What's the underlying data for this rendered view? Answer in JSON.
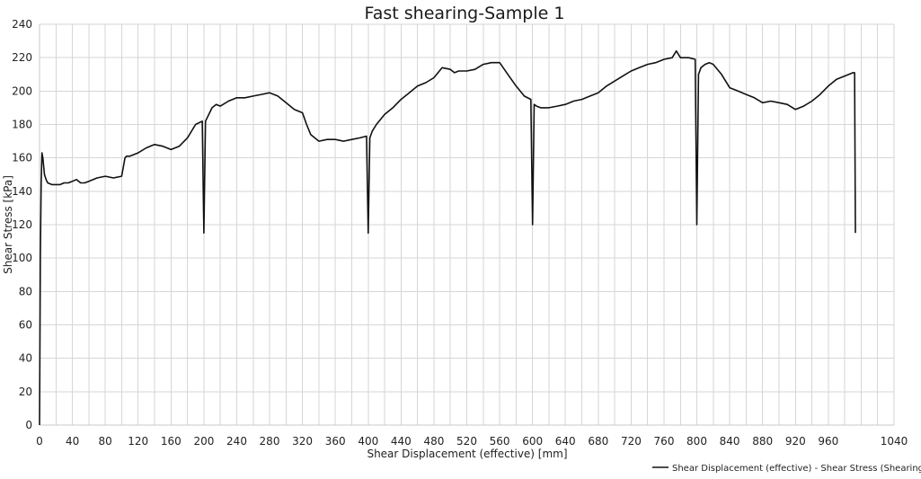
{
  "chart_data": {
    "type": "line",
    "title": "Fast shearing-Sample 1",
    "xlabel": "Shear Displacement (effective) [mm]",
    "ylabel": "Shear Stress [kPa]",
    "xlim": [
      0,
      1040
    ],
    "ylim": [
      0,
      240
    ],
    "xticks": [
      0,
      40,
      80,
      120,
      160,
      200,
      240,
      280,
      320,
      360,
      400,
      440,
      480,
      520,
      560,
      600,
      640,
      680,
      720,
      760,
      800,
      840,
      880,
      920,
      960,
      1040
    ],
    "yticks": [
      0,
      20,
      40,
      60,
      80,
      100,
      120,
      140,
      160,
      180,
      200,
      220,
      240
    ],
    "grid": true,
    "legend": "bottom-right",
    "series": [
      {
        "name": "Shear Displacement (effective) - Shear Stress (Shearing)",
        "color": "#111111",
        "x": [
          0,
          1,
          2,
          3,
          4,
          6,
          8,
          10,
          15,
          20,
          25,
          30,
          35,
          40,
          45,
          50,
          55,
          60,
          70,
          80,
          90,
          100,
          104,
          106,
          110,
          120,
          130,
          140,
          150,
          160,
          170,
          180,
          190,
          198,
          200,
          202,
          205,
          210,
          215,
          220,
          230,
          240,
          250,
          260,
          270,
          280,
          290,
          300,
          310,
          320,
          325,
          330,
          340,
          350,
          360,
          370,
          380,
          390,
          398,
          400,
          402,
          405,
          410,
          420,
          430,
          440,
          450,
          460,
          470,
          480,
          490,
          500,
          505,
          510,
          520,
          530,
          540,
          550,
          560,
          570,
          580,
          590,
          598,
          600,
          602,
          605,
          610,
          620,
          630,
          640,
          650,
          660,
          670,
          680,
          690,
          700,
          710,
          720,
          730,
          740,
          750,
          760,
          770,
          775,
          780,
          790,
          798,
          800,
          802,
          805,
          810,
          815,
          820,
          830,
          840,
          850,
          860,
          870,
          880,
          890,
          900,
          910,
          920,
          930,
          940,
          950,
          960,
          970,
          980,
          990,
          992,
          993
        ],
        "y": [
          0,
          100,
          145,
          163,
          160,
          150,
          147,
          145,
          144,
          144,
          144,
          145,
          145,
          146,
          147,
          145,
          145,
          146,
          148,
          149,
          148,
          149,
          160,
          161,
          161,
          163,
          166,
          168,
          167,
          165,
          167,
          172,
          180,
          182,
          115,
          182,
          185,
          190,
          192,
          191,
          194,
          196,
          196,
          197,
          198,
          199,
          197,
          193,
          189,
          187,
          180,
          174,
          170,
          171,
          171,
          170,
          171,
          172,
          173,
          115,
          172,
          176,
          180,
          186,
          190,
          195,
          199,
          203,
          205,
          208,
          214,
          213,
          211,
          212,
          212,
          213,
          216,
          217,
          217,
          210,
          203,
          197,
          195,
          120,
          192,
          191,
          190,
          190,
          191,
          192,
          194,
          195,
          197,
          199,
          203,
          206,
          209,
          212,
          214,
          216,
          217,
          219,
          220,
          224,
          220,
          220,
          219,
          120,
          210,
          214,
          216,
          217,
          216,
          210,
          202,
          200,
          198,
          196,
          193,
          194,
          193,
          192,
          189,
          191,
          194,
          198,
          203,
          207,
          209,
          211,
          211,
          115
        ]
      }
    ]
  }
}
